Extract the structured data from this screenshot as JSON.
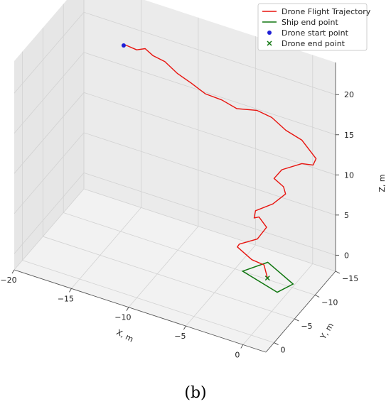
{
  "chart_data": {
    "type": "line",
    "projection": "3d",
    "panel_label": "(b)",
    "xlabel": "X, m",
    "ylabel": "Y, m",
    "zlabel": "Z, m",
    "xlim": [
      -20,
      2
    ],
    "ylim": [
      -15,
      2
    ],
    "zlim": [
      -2,
      24
    ],
    "x_ticks": [
      -20,
      -15,
      -10,
      -5,
      0
    ],
    "y_ticks": [
      -15,
      -10,
      -5,
      0
    ],
    "z_ticks": [
      0,
      5,
      10,
      15,
      20
    ],
    "x_tick_labels": [
      "−20",
      "−15",
      "−10",
      "−5",
      "0"
    ],
    "y_tick_labels": [
      "−15",
      "−10",
      "−5",
      "0"
    ],
    "z_tick_labels": [
      "0",
      "5",
      "10",
      "15",
      "20"
    ],
    "grid": true,
    "legend_position": "upper-right",
    "legend": [
      {
        "label": "Drone Flight Trajectory",
        "kind": "line",
        "color": "#e8140f"
      },
      {
        "label": "Ship end point",
        "kind": "line",
        "color": "#117711"
      },
      {
        "label": "Drone start point",
        "kind": "dot",
        "color": "#1f1fd6"
      },
      {
        "label": "Drone end point",
        "kind": "cross",
        "color": "#117711"
      }
    ],
    "series": [
      {
        "name": "Drone Flight Trajectory",
        "color": "#e8140f",
        "points": [
          [
            -14.1,
            -8.7,
            22.4
          ],
          [
            -13.2,
            -8.9,
            22.1
          ],
          [
            -12.6,
            -9.3,
            22.3
          ],
          [
            -12.0,
            -9.5,
            21.6
          ],
          [
            -11.2,
            -10.2,
            20.8
          ],
          [
            -10.2,
            -10.5,
            19.6
          ],
          [
            -9.2,
            -11.0,
            18.6
          ],
          [
            -8.2,
            -11.7,
            17.3
          ],
          [
            -6.9,
            -12.1,
            16.9
          ],
          [
            -5.7,
            -12.4,
            16.2
          ],
          [
            -4.1,
            -12.8,
            16.5
          ],
          [
            -2.9,
            -13.1,
            16.0
          ],
          [
            -1.7,
            -13.2,
            14.9
          ],
          [
            -0.4,
            -13.5,
            14.1
          ],
          [
            0.8,
            -13.6,
            12.3
          ],
          [
            0.5,
            -13.7,
            11.3
          ],
          [
            -0.3,
            -13.2,
            11.4
          ],
          [
            -1.4,
            -11.4,
            11.2
          ],
          [
            -1.8,
            -10.6,
            10.4
          ],
          [
            -0.9,
            -10.4,
            9.9
          ],
          [
            -0.9,
            -10.9,
            8.7
          ],
          [
            -1.8,
            -10.3,
            7.4
          ],
          [
            -3.1,
            -9.7,
            6.3
          ],
          [
            -3.0,
            -9.1,
            5.8
          ],
          [
            -2.4,
            -8.6,
            6.5
          ],
          [
            -1.7,
            -8.5,
            5.6
          ],
          [
            -2.4,
            -8.2,
            4.0
          ],
          [
            -3.8,
            -7.7,
            3.0
          ],
          [
            -4.0,
            -7.8,
            2.5
          ],
          [
            -2.6,
            -7.4,
            1.8
          ],
          [
            -1.6,
            -7.6,
            1.5
          ],
          [
            -1.3,
            -7.6,
            0.0
          ]
        ]
      }
    ],
    "drone_start_point": [
      -14.3,
      -8.8,
      22.2
    ],
    "drone_end_point": [
      -1.3,
      -7.6,
      0.0
    ],
    "ship_end_point_outline": [
      [
        -2.2,
        -10.2,
        0.0
      ],
      [
        0.8,
        -8.0,
        0.0
      ],
      [
        0.2,
        -5.8,
        0.0
      ],
      [
        -3.4,
        -7.4,
        0.0
      ]
    ]
  }
}
